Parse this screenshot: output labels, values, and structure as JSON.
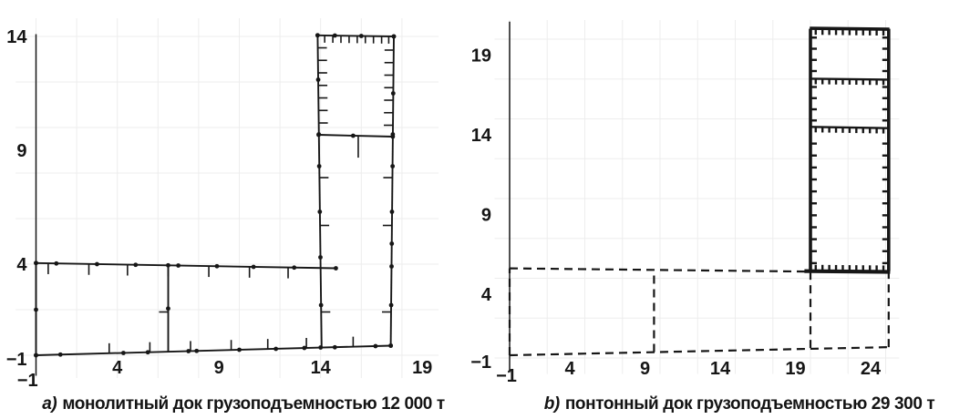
{
  "page": {
    "background": "#ffffff",
    "ink": "#161616",
    "grid_color": "#ededed"
  },
  "chart_data": [
    {
      "id": "a",
      "type": "line",
      "title": "а) монолитный док грузоподъемностью 12 000 т",
      "caption_prefix": "а)",
      "caption_text": "монолитный док грузоподъемностью 12 000 т",
      "xlabel": "",
      "ylabel": "",
      "xticks": [
        -1,
        4,
        9,
        14,
        19
      ],
      "yticks": [
        -1,
        4,
        9,
        14
      ],
      "xlim": [
        -1,
        19.8
      ],
      "ylim": [
        -1,
        14.8
      ],
      "grid": true,
      "grid_step": 2,
      "line_style": "solid",
      "legend": "none",
      "shapes": [
        {
          "name": "y-axis-spine",
          "w": "axis",
          "pts": [
            [
              0,
              -0.9
            ],
            [
              0,
              14.1
            ]
          ]
        },
        {
          "name": "pontoon-left-wall",
          "w": "med",
          "pts": [
            [
              0,
              0
            ],
            [
              0,
              4.05
            ]
          ],
          "markers": [
            [
              0,
              0
            ],
            [
              0,
              2
            ],
            [
              0,
              4.05
            ]
          ]
        },
        {
          "name": "pontoon-deck",
          "w": "med",
          "pts": [
            [
              0,
              4.05
            ],
            [
              14.75,
              3.82
            ]
          ],
          "markers": [
            [
              0,
              4.05
            ],
            [
              1,
              4.03
            ],
            [
              3,
              4.0
            ],
            [
              4.9,
              3.97
            ],
            [
              6.5,
              3.95
            ],
            [
              7,
              3.94
            ],
            [
              8.9,
              3.91
            ],
            [
              10.7,
              3.88
            ],
            [
              12.7,
              3.85
            ],
            [
              14.75,
              3.82
            ]
          ],
          "hatch": {
            "dir": "down",
            "at": [
              0.6,
              2.6,
              4.5,
              6.5,
              8.5,
              10.5,
              12.4
            ],
            "len": 12
          }
        },
        {
          "name": "pontoon-bottom",
          "w": "med",
          "pts": [
            [
              0,
              0
            ],
            [
              17.45,
              0.42
            ]
          ],
          "markers": [
            [
              0,
              0
            ],
            [
              1.2,
              0.03
            ],
            [
              4.3,
              0.1
            ],
            [
              5.5,
              0.13
            ],
            [
              7.5,
              0.18
            ],
            [
              7.9,
              0.19
            ],
            [
              10,
              0.24
            ],
            [
              11.8,
              0.28
            ],
            [
              13.2,
              0.32
            ],
            [
              14,
              0.34
            ],
            [
              14.7,
              0.35
            ],
            [
              16.7,
              0.4
            ],
            [
              17.45,
              0.42
            ]
          ],
          "hatch": {
            "dir": "up",
            "at": [
              3.6,
              5.6,
              7.6,
              9.6,
              11.4,
              13.3,
              15.6
            ],
            "len": 11
          }
        },
        {
          "name": "pontoon-bulkhead",
          "w": "med",
          "pts": [
            [
              6.5,
              0.16
            ],
            [
              6.5,
              3.95
            ]
          ],
          "markers": [
            [
              6.5,
              2.05
            ]
          ],
          "hatch": {
            "dir": "left",
            "at": [
              1.9
            ],
            "len": 10
          }
        },
        {
          "name": "tower-left-wall",
          "w": "med",
          "pts": [
            [
              14.05,
              0.3
            ],
            [
              13.85,
              14.05
            ]
          ],
          "markers": [
            [
              14.02,
              2.2
            ],
            [
              13.99,
              4.3
            ],
            [
              13.96,
              6.3
            ],
            [
              13.93,
              8.3
            ],
            [
              13.91,
              9.7
            ],
            [
              13.88,
              12.1
            ],
            [
              13.85,
              14.05
            ]
          ],
          "hatch": {
            "dir": "right",
            "at": [
              1.9,
              5.7,
              7.8,
              10.2,
              10.75,
              11.3,
              11.85,
              12.4,
              12.95,
              13.5
            ],
            "len": 10
          }
        },
        {
          "name": "tower-right-wall",
          "w": "med",
          "pts": [
            [
              17.45,
              0.42
            ],
            [
              17.6,
              14.0
            ]
          ],
          "markers": [
            [
              17.45,
              0.42
            ],
            [
              17.47,
              2.2
            ],
            [
              17.49,
              3.9
            ],
            [
              17.5,
              4.9
            ],
            [
              17.51,
              6.3
            ],
            [
              17.54,
              8.3
            ],
            [
              17.55,
              9.7
            ],
            [
              17.57,
              11.5
            ],
            [
              17.6,
              14.0
            ]
          ],
          "hatch": {
            "dir": "left",
            "at": [
              1.9,
              5.7,
              7.8,
              10.1,
              10.65,
              11.2,
              11.75,
              12.3,
              12.85,
              13.4
            ],
            "len": 10
          }
        },
        {
          "name": "tower-top-deck",
          "w": "med",
          "pts": [
            [
              13.85,
              14.05
            ],
            [
              17.6,
              14.0
            ]
          ],
          "markers": [
            [
              13.85,
              14.05
            ],
            [
              14.7,
              14.04
            ],
            [
              16.0,
              14.02
            ],
            [
              17.6,
              14.0
            ]
          ],
          "hatch": {
            "dir": "down",
            "at": [
              14.2,
              14.6,
              15.0,
              15.4,
              15.8,
              16.2,
              16.6,
              17.0,
              17.35
            ],
            "len": 8
          }
        },
        {
          "name": "tower-mid-deck",
          "w": "med",
          "pts": [
            [
              13.9,
              9.68
            ],
            [
              17.55,
              9.6
            ]
          ],
          "markers": [
            [
              13.9,
              9.68
            ],
            [
              15.6,
              9.64
            ],
            [
              17.55,
              9.6
            ]
          ],
          "hatch": {
            "dir": "down",
            "at": [
              15.85
            ],
            "len": 24
          }
        }
      ]
    },
    {
      "id": "b",
      "type": "line",
      "title": "b) понтонный док грузоподъемностью 29 300 т",
      "caption_prefix": "b)",
      "caption_text": "понтонный док грузоподъемностью 29 300 т",
      "xlabel": "",
      "ylabel": "",
      "xticks": [
        -1,
        4,
        9,
        14,
        19,
        24
      ],
      "yticks": [
        -1,
        4,
        9,
        14,
        19
      ],
      "xlim": [
        -1,
        25.9
      ],
      "ylim": [
        -1,
        21.2
      ],
      "grid": true,
      "grid_step": 2.5,
      "line_style": "solid-and-dashed",
      "legend": "none",
      "shapes": [
        {
          "name": "y-axis-spine",
          "w": "axis",
          "pts": [
            [
              0,
              -0.9
            ],
            [
              0,
              21.1
            ]
          ]
        },
        {
          "name": "pontoon-outline-top",
          "w": "dash",
          "pts": [
            [
              0,
              5.62
            ],
            [
              19.62,
              5.42
            ]
          ]
        },
        {
          "name": "pontoon-outline-bottom",
          "w": "dash",
          "pts": [
            [
              0,
              0.17
            ],
            [
              25.25,
              0.68
            ]
          ]
        },
        {
          "name": "pontoon-outline-left",
          "w": "dash",
          "pts": [
            [
              0,
              0.17
            ],
            [
              0,
              5.62
            ]
          ]
        },
        {
          "name": "pontoon-bulkhead",
          "w": "dash",
          "pts": [
            [
              9.6,
              0.37
            ],
            [
              9.6,
              5.5
            ]
          ]
        },
        {
          "name": "pontoon-tower-left-bulkhead",
          "w": "dash",
          "pts": [
            [
              20,
              0.62
            ],
            [
              20,
              5.35
            ]
          ]
        },
        {
          "name": "pontoon-outline-right",
          "w": "dash",
          "pts": [
            [
              25.2,
              0.68
            ],
            [
              25.2,
              5.32
            ]
          ]
        },
        {
          "name": "tower-bottom",
          "w": "xthick",
          "pts": [
            [
              19.6,
              5.45
            ],
            [
              25.3,
              5.4
            ]
          ],
          "hatch": {
            "dir": "up",
            "at": [
              20.35,
              20.8,
              21.25,
              21.7,
              22.15,
              22.6,
              23.05,
              23.5,
              23.95,
              24.4,
              24.85
            ],
            "len": 7
          }
        },
        {
          "name": "tower-left-wall",
          "w": "thick",
          "pts": [
            [
              20,
              5.45
            ],
            [
              20,
              20.65
            ]
          ],
          "hatch": {
            "dir": "right",
            "at": [
              5.95,
              6.7,
              7.45,
              8.2,
              8.95,
              9.7,
              10.45,
              11.2,
              11.95,
              12.7,
              13.45,
              14.9,
              15.6,
              16.3,
              17.0,
              18.0,
              18.7,
              19.4,
              20.1
            ],
            "len": 7
          }
        },
        {
          "name": "tower-right-wall",
          "w": "thick",
          "pts": [
            [
              25.2,
              5.45
            ],
            [
              25.2,
              20.65
            ]
          ],
          "hatch": {
            "dir": "left",
            "at": [
              5.95,
              6.7,
              7.45,
              8.2,
              8.95,
              9.7,
              10.45,
              11.2,
              11.95,
              12.7,
              13.45,
              14.9,
              15.6,
              16.3,
              17.0,
              18.0,
              18.7,
              19.4,
              20.1
            ],
            "len": 7
          }
        },
        {
          "name": "tower-top",
          "w": "thick",
          "pts": [
            [
              19.95,
              20.68
            ],
            [
              25.25,
              20.62
            ]
          ],
          "hatch": {
            "dir": "down",
            "at": [
              20.35,
              20.8,
              21.25,
              21.7,
              22.15,
              22.6,
              23.05,
              23.5,
              23.95,
              24.4,
              24.85
            ],
            "len": 7
          }
        },
        {
          "name": "tower-deck-upper",
          "w": "med",
          "pts": [
            [
              20.05,
              17.52
            ],
            [
              25.15,
              17.46
            ]
          ],
          "hatch": {
            "dir": "down",
            "at": [
              20.35,
              20.8,
              21.25,
              21.7,
              22.15,
              22.6,
              23.05,
              23.5,
              23.95,
              24.4,
              24.85
            ],
            "len": 6
          }
        },
        {
          "name": "tower-deck-lower",
          "w": "med",
          "pts": [
            [
              20.05,
              14.5
            ],
            [
              25.15,
              14.42
            ]
          ],
          "hatch": {
            "dir": "down",
            "at": [
              20.35,
              20.8,
              21.25,
              21.7,
              22.15,
              22.6,
              23.05,
              23.5,
              23.95,
              24.4,
              24.85
            ],
            "len": 6
          }
        }
      ]
    }
  ]
}
